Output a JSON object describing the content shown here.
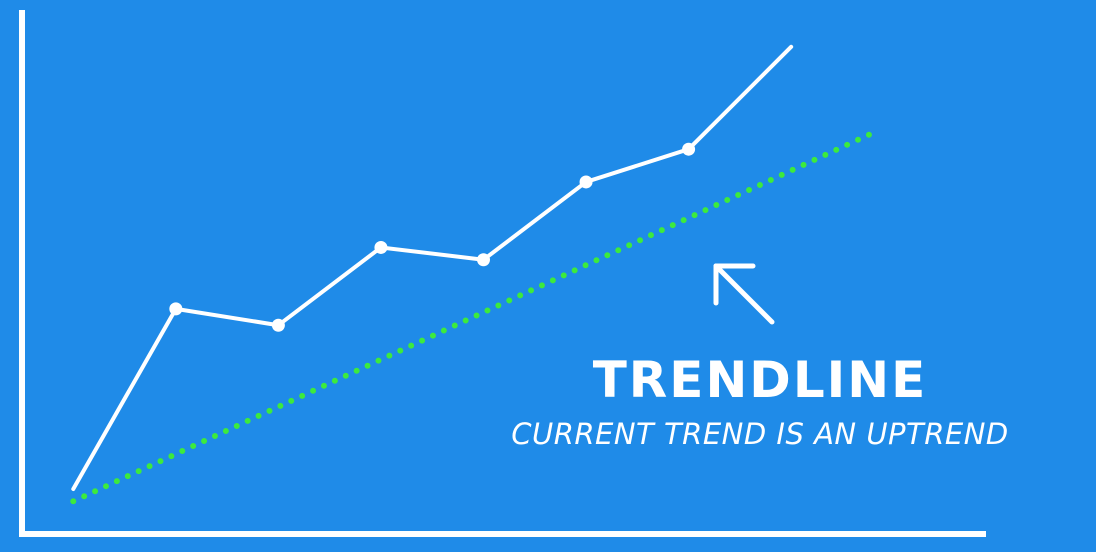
{
  "chart_data": {
    "type": "line",
    "title": "TRENDLINE",
    "subtitle": "CURRENT TREND IS AN UPTREND",
    "xlabel": "",
    "ylabel": "",
    "grid": false,
    "x": [
      1,
      2,
      3,
      4,
      5,
      6,
      7,
      8
    ],
    "series": [
      {
        "values": [
          0.3,
          4.7,
          4.3,
          6.2,
          5.9,
          7.8,
          8.6,
          11.1
        ]
      }
    ],
    "trendline": {
      "x": [
        1,
        8.8
      ],
      "y": [
        0,
        9.0
      ],
      "style": "dotted"
    },
    "ylim": [
      -0.8,
      12.0
    ],
    "xlim": [
      0.5,
      9.9
    ],
    "colors": {
      "background": "#1f8be8",
      "line": "#ffffff",
      "trendline": "#3dea3d",
      "axes": "#ffffff"
    }
  },
  "icons": {
    "arrow": "arrow-up-left-icon"
  }
}
